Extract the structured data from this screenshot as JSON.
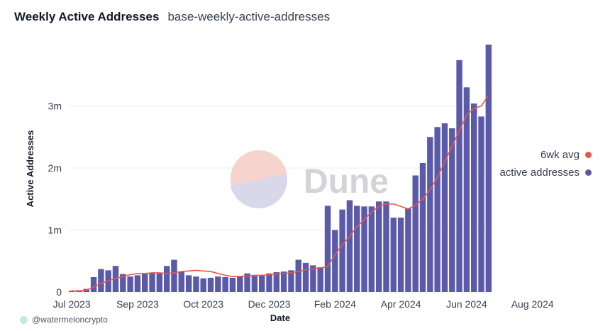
{
  "header": {
    "title": "Weekly Active Addresses",
    "subtitle": "base-weekly-active-addresses"
  },
  "watermark": {
    "text": "Dune"
  },
  "footer": {
    "credit": "@watermeloncrypto"
  },
  "colors": {
    "bars": "#5b5aa8",
    "line": "#e8574a",
    "grid": "#ececec"
  },
  "chart_data": {
    "type": "bar",
    "ylabel": "Active Addresses",
    "xlabel": "Date",
    "ylim": [
      0,
      4000000
    ],
    "y_ticks": [
      0,
      1000000,
      2000000,
      3000000
    ],
    "y_tick_labels": [
      "0",
      "1m",
      "2m",
      "3m"
    ],
    "x_tick_labels": [
      "Jul 2023",
      "Sep 2023",
      "Oct 2023",
      "Dec 2023",
      "Feb 2024",
      "Apr 2024",
      "Jun 2024",
      "Aug 2024"
    ],
    "x_tick_weeks": [
      0,
      9,
      18,
      27,
      36,
      45,
      54,
      63
    ],
    "grid": true,
    "legend_position": "right",
    "series": [
      {
        "name": "active addresses",
        "kind": "bar",
        "color": "#5b5aa8",
        "values": [
          20000,
          20000,
          50000,
          240000,
          370000,
          350000,
          420000,
          290000,
          250000,
          270000,
          290000,
          310000,
          300000,
          420000,
          520000,
          330000,
          270000,
          250000,
          220000,
          230000,
          250000,
          240000,
          230000,
          260000,
          300000,
          260000,
          270000,
          300000,
          320000,
          330000,
          350000,
          520000,
          470000,
          430000,
          400000,
          1390000,
          1000000,
          1330000,
          1480000,
          1390000,
          1380000,
          1380000,
          1460000,
          1460000,
          1200000,
          1200000,
          1350000,
          1880000,
          2080000,
          2500000,
          2660000,
          2720000,
          2640000,
          3740000,
          3300000,
          3040000,
          2830000,
          3990000
        ]
      },
      {
        "name": "6wk avg",
        "kind": "line",
        "color": "#e8574a",
        "values": [
          20000,
          20000,
          30000,
          80000,
          140000,
          180000,
          220000,
          250000,
          280000,
          300000,
          300000,
          310000,
          310000,
          300000,
          310000,
          330000,
          340000,
          350000,
          340000,
          330000,
          300000,
          270000,
          250000,
          250000,
          260000,
          270000,
          270000,
          280000,
          290000,
          300000,
          310000,
          330000,
          360000,
          370000,
          390000,
          410000,
          600000,
          760000,
          900000,
          1050000,
          1170000,
          1290000,
          1380000,
          1420000,
          1420000,
          1380000,
          1340000,
          1400000,
          1500000,
          1650000,
          1850000,
          2100000,
          2350000,
          2600000,
          2850000,
          2960000,
          3000000,
          3170000
        ]
      }
    ]
  }
}
